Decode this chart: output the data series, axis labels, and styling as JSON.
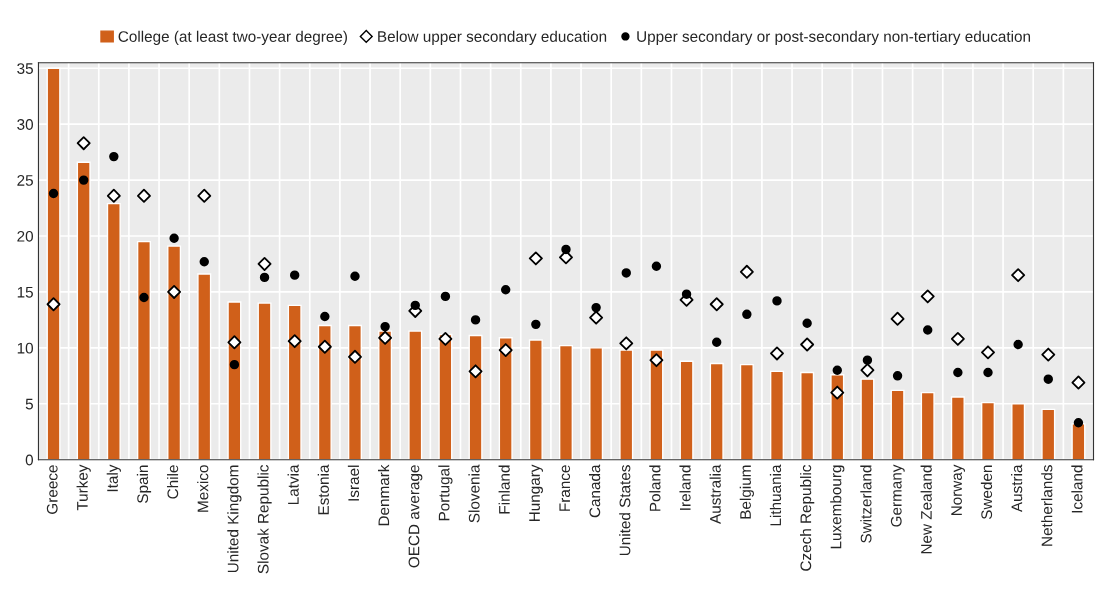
{
  "chart_data": {
    "type": "bar",
    "categories": [
      "Greece",
      "Turkey",
      "Italy",
      "Spain",
      "Chile",
      "Mexico",
      "United Kingdom",
      "Slovak Republic",
      "Latvia",
      "Estonia",
      "Israel",
      "Denmark",
      "OECD average",
      "Portugal",
      "Slovenia",
      "Finland",
      "Hungary",
      "France",
      "Canada",
      "United States",
      "Poland",
      "Ireland",
      "Australia",
      "Belgium",
      "Lithuania",
      "Czech Republic",
      "Luxembourg",
      "Switzerland",
      "Germany",
      "New Zealand",
      "Norway",
      "Sweden",
      "Austria",
      "Netherlands",
      "Iceland"
    ],
    "series": [
      {
        "name": "College (at least two-year degree)",
        "color": "#d0601a",
        "values": [
          35,
          26.6,
          22.9,
          19.5,
          19.1,
          16.6,
          14.1,
          14.0,
          13.8,
          12.0,
          12.0,
          11.5,
          11.5,
          11.2,
          11.1,
          10.9,
          10.7,
          10.2,
          10.0,
          9.8,
          9.8,
          8.8,
          8.6,
          8.5,
          7.9,
          7.8,
          7.6,
          7.2,
          6.2,
          6.0,
          5.6,
          5.1,
          5.0,
          4.5,
          3.2
        ]
      },
      {
        "name": "Below upper secondary education",
        "type": "scatter",
        "marker": "diamond",
        "color": "#ffffff",
        "values": [
          13.9,
          28.3,
          23.6,
          23.6,
          15.0,
          23.6,
          10.5,
          17.5,
          10.6,
          10.1,
          9.2,
          10.9,
          13.3,
          10.8,
          7.9,
          9.8,
          18.0,
          18.1,
          12.7,
          10.4,
          8.9,
          14.3,
          13.9,
          16.8,
          9.5,
          10.3,
          6.0,
          8.0,
          12.6,
          14.6,
          10.8,
          9.6,
          16.5,
          9.4,
          6.9
        ]
      },
      {
        "name": "Upper secondary or post-secondary non-tertiary education",
        "type": "scatter",
        "marker": "circle",
        "color": "#000000",
        "values": [
          23.8,
          25.0,
          27.1,
          14.5,
          19.8,
          17.7,
          8.5,
          16.3,
          16.5,
          12.8,
          16.4,
          11.9,
          13.8,
          14.6,
          12.5,
          15.2,
          12.1,
          18.8,
          13.6,
          16.7,
          17.3,
          14.8,
          10.5,
          13.0,
          14.2,
          12.2,
          8.0,
          8.9,
          7.5,
          11.6,
          7.8,
          7.8,
          10.3,
          7.2,
          3.3
        ]
      }
    ],
    "ylim": [
      0,
      35.5
    ],
    "yticks": [
      0,
      5,
      10,
      15,
      20,
      25,
      30,
      35
    ],
    "grid": true,
    "legend": "top"
  }
}
